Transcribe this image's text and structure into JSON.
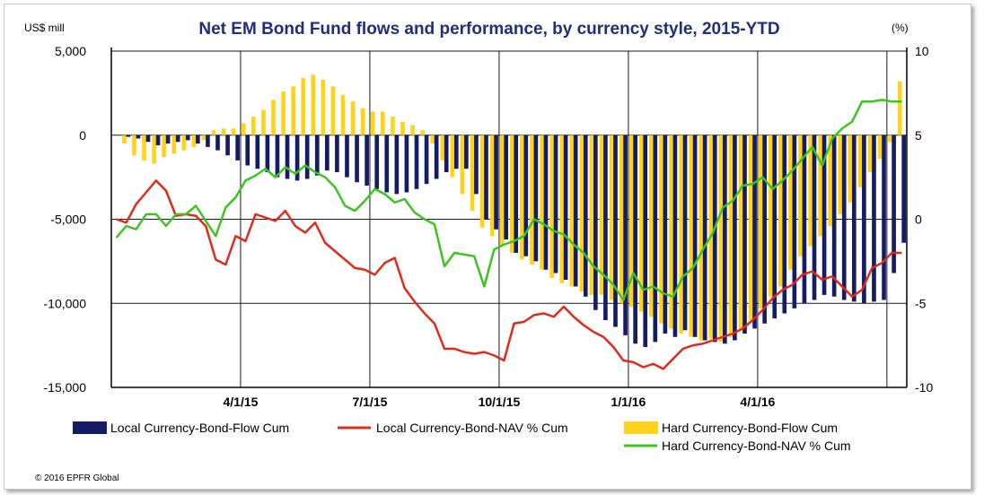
{
  "chart_data": {
    "type": "bar+line",
    "title": "Net EM Bond Fund flows and performance, by currency style, 2015-YTD",
    "left_axis_label": "US$ mill",
    "right_axis_label": "(%)",
    "left_ylim": [
      -15000,
      5000
    ],
    "right_ylim": [
      -10,
      10
    ],
    "left_ticks": [
      5000,
      0,
      -5000,
      -10000,
      -15000
    ],
    "left_tick_labels": [
      "5,000",
      "0",
      "-5,000",
      "-10,000",
      "-15,000"
    ],
    "right_ticks": [
      10,
      5,
      0,
      -5,
      -10
    ],
    "right_tick_labels": [
      "10",
      "5",
      "0",
      "-5",
      "-10"
    ],
    "x_tick_labels": [
      "4/1/15",
      "7/1/15",
      "10/1/15",
      "1/1/16",
      "4/1/16"
    ],
    "x_tick_weeks": [
      13,
      26,
      39,
      52,
      65
    ],
    "n_weeks": 80,
    "series": [
      {
        "name": "Local Currency-Bond-Flow Cum",
        "kind": "bar",
        "axis": "left",
        "color": "#141c66",
        "values": [
          0,
          -100,
          -200,
          -400,
          -600,
          -500,
          -400,
          -300,
          -500,
          -700,
          -900,
          -1200,
          -1500,
          -1800,
          -2000,
          -2200,
          -2500,
          -2600,
          -2700,
          -2600,
          -2400,
          -2100,
          -2200,
          -2500,
          -2800,
          -3000,
          -3200,
          -3400,
          -3500,
          -3400,
          -3200,
          -2900,
          -2600,
          -2200,
          -2000,
          -2000,
          -3500,
          -5000,
          -5600,
          -6200,
          -7000,
          -7200,
          -7500,
          -8000,
          -8200,
          -8600,
          -9000,
          -9600,
          -10400,
          -11000,
          -11400,
          -11900,
          -12400,
          -12600,
          -12300,
          -11800,
          -12000,
          -11600,
          -12000,
          -12200,
          -12300,
          -12400,
          -12200,
          -11800,
          -11500,
          -11200,
          -10900,
          -10600,
          -10300,
          -10000,
          -9800,
          -9500,
          -9600,
          -9800,
          -9900,
          -10000,
          -9900,
          -9800,
          -8200,
          -6400
        ]
      },
      {
        "name": "Hard Currency-Bond-Flow Cum",
        "kind": "bar",
        "axis": "left",
        "color": "#ffd21c",
        "values": [
          0,
          -500,
          -1200,
          -1500,
          -1700,
          -1300,
          -1100,
          -900,
          -700,
          -300,
          300,
          400,
          400,
          700,
          1100,
          1500,
          2100,
          2600,
          2900,
          3400,
          3600,
          3300,
          2900,
          2400,
          2000,
          1600,
          1400,
          1400,
          1100,
          800,
          600,
          300,
          -500,
          -1500,
          -2500,
          -3500,
          -4500,
          -5500,
          -6000,
          -6500,
          -7000,
          -7400,
          -7700,
          -8000,
          -8500,
          -8800,
          -9000,
          -9300,
          -9500,
          -9500,
          -9800,
          -10000,
          -10200,
          -10500,
          -10800,
          -11200,
          -11500,
          -11800,
          -12000,
          -12200,
          -12100,
          -12300,
          -12000,
          -11500,
          -11000,
          -10300,
          -9600,
          -9000,
          -8000,
          -7200,
          -6600,
          -6000,
          -5400,
          -4700,
          -4000,
          -3100,
          -2200,
          -1400,
          -400,
          3200
        ]
      },
      {
        "name": "Local Currency-Bond-NAV % Cum",
        "kind": "line",
        "axis": "right",
        "color": "#e02b1c",
        "values": [
          0,
          -0.2,
          0.9,
          1.6,
          2.3,
          1.7,
          0.2,
          0.3,
          0.2,
          -0.4,
          -2.4,
          -2.7,
          -1.0,
          -1.3,
          0.3,
          0.1,
          -0.1,
          0.5,
          -0.4,
          -0.8,
          -0.2,
          -1.4,
          -1.9,
          -2.4,
          -2.9,
          -3.0,
          -3.3,
          -2.6,
          -2.3,
          -4.1,
          -4.9,
          -5.6,
          -6.2,
          -7.7,
          -7.7,
          -7.9,
          -8.0,
          -7.9,
          -8.1,
          -8.4,
          -6.2,
          -6.1,
          -5.7,
          -5.6,
          -5.8,
          -5.2,
          -5.8,
          -6.3,
          -6.7,
          -7.0,
          -7.6,
          -8.4,
          -8.5,
          -8.8,
          -8.6,
          -8.9,
          -8.3,
          -7.7,
          -7.5,
          -7.4,
          -7.2,
          -7.0,
          -6.8,
          -6.5,
          -6.0,
          -5.4,
          -4.7,
          -4.2,
          -3.9,
          -3.3,
          -3.1,
          -3.6,
          -3.4,
          -4.0,
          -4.6,
          -4.2,
          -2.9,
          -2.6,
          -2.0,
          -2.0
        ]
      },
      {
        "name": "Hard Currency-Bond-NAV % Cum",
        "kind": "line",
        "axis": "right",
        "color": "#3dc422",
        "values": [
          -1.1,
          -0.4,
          -0.6,
          0.3,
          0.3,
          -0.4,
          0.3,
          0.3,
          0.8,
          -0.1,
          -1.0,
          0.7,
          1.3,
          2.3,
          2.6,
          3.0,
          2.5,
          3.1,
          2.7,
          3.2,
          2.8,
          2.5,
          1.9,
          0.8,
          0.5,
          1.1,
          1.8,
          1.5,
          1.0,
          1.2,
          0.4,
          0.0,
          -0.3,
          -2.8,
          -2.0,
          -2.1,
          -2.2,
          -4.0,
          -1.8,
          -1.5,
          -1.3,
          -1.0,
          0.0,
          -0.3,
          -0.7,
          -0.9,
          -1.5,
          -2.0,
          -2.8,
          -3.3,
          -3.9,
          -4.8,
          -3.2,
          -4.2,
          -4.0,
          -4.4,
          -4.6,
          -3.4,
          -2.9,
          -1.8,
          -0.8,
          0.7,
          1.1,
          2.0,
          2.1,
          2.5,
          1.8,
          2.3,
          2.9,
          3.6,
          4.3,
          3.2,
          4.8,
          5.4,
          5.8,
          7.0,
          7.0,
          7.1,
          7.0,
          7.0
        ]
      }
    ],
    "legend": [
      "Local Currency-Bond-Flow Cum",
      "Local Currency-Bond-NAV % Cum",
      "Hard Currency-Bond-Flow Cum",
      "Hard Currency-Bond-NAV % Cum"
    ]
  },
  "footer": {
    "copyright": "© 2016 EPFR Global"
  }
}
